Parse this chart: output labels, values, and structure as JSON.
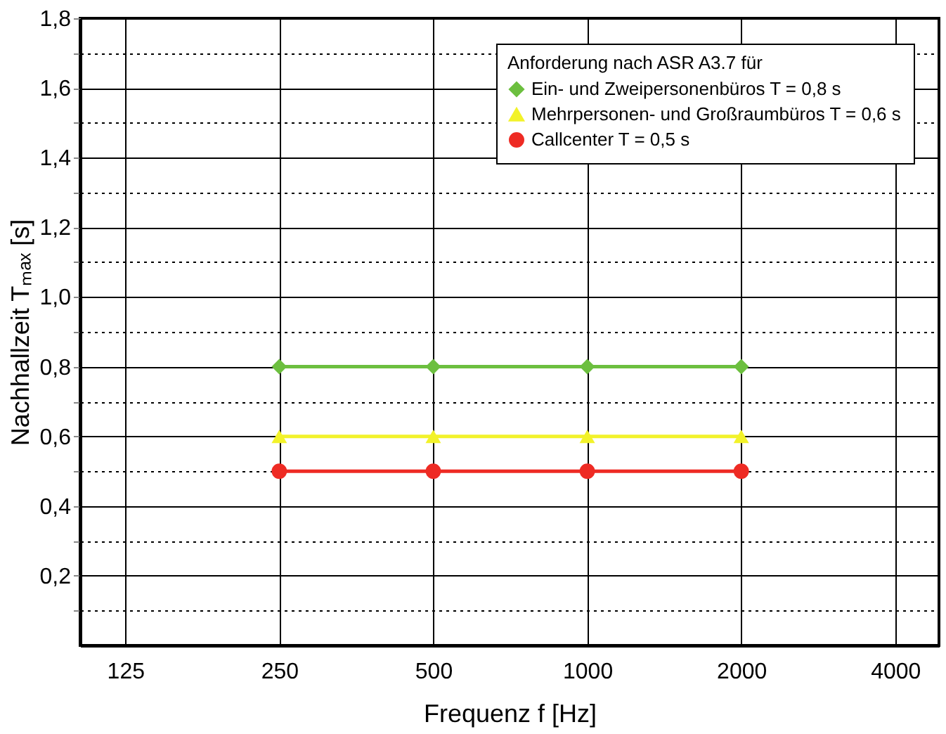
{
  "chart_data": {
    "type": "line",
    "xlabel": "Frequenz f [Hz]",
    "ylabel": "Nachhallzeit Tₘₐₓ [s]",
    "legend_title": "Anforderung nach ASR A3.7 für",
    "x": [
      250,
      500,
      1000,
      2000
    ],
    "log": "x",
    "xlim": [
      102,
      4870
    ],
    "xticks": [
      125,
      250,
      500,
      1000,
      2000,
      4000
    ],
    "ylim": [
      0,
      1.8
    ],
    "yticks": [
      {
        "value": 0.1,
        "label": null
      },
      {
        "value": 0.2,
        "label": "0,2"
      },
      {
        "value": 0.3,
        "label": null
      },
      {
        "value": 0.4,
        "label": "0,4"
      },
      {
        "value": 0.5,
        "label": null
      },
      {
        "value": 0.6,
        "label": "0,6"
      },
      {
        "value": 0.7,
        "label": null
      },
      {
        "value": 0.8,
        "label": "0,8"
      },
      {
        "value": 0.9,
        "label": null
      },
      {
        "value": 1.0,
        "label": "1,0"
      },
      {
        "value": 1.1,
        "label": null
      },
      {
        "value": 1.2,
        "label": "1,2"
      },
      {
        "value": 1.3,
        "label": null
      },
      {
        "value": 1.4,
        "label": "1,4"
      },
      {
        "value": 1.5,
        "label": null
      },
      {
        "value": 1.6,
        "label": "1,6"
      },
      {
        "value": 1.7,
        "label": null
      },
      {
        "value": 1.8,
        "label": "1,8"
      }
    ],
    "grid": true,
    "legend": "top right",
    "line_style": "solid",
    "series": [
      {
        "name": "Ein- und Zweipersonenbüros T = 0,8 s",
        "color": "#6cbf3f",
        "marker": "diamond",
        "values": [
          0.8,
          0.8,
          0.8,
          0.8
        ]
      },
      {
        "name": "Mehrpersonen- und Großraumbüros T = 0,6 s",
        "color": "#f2f22a",
        "marker": "triangle",
        "values": [
          0.6,
          0.6,
          0.6,
          0.6
        ]
      },
      {
        "name": "Callcenter T = 0,5 s",
        "color": "#ee2b24",
        "marker": "circle",
        "values": [
          0.5,
          0.5,
          0.5,
          0.5
        ]
      }
    ]
  }
}
